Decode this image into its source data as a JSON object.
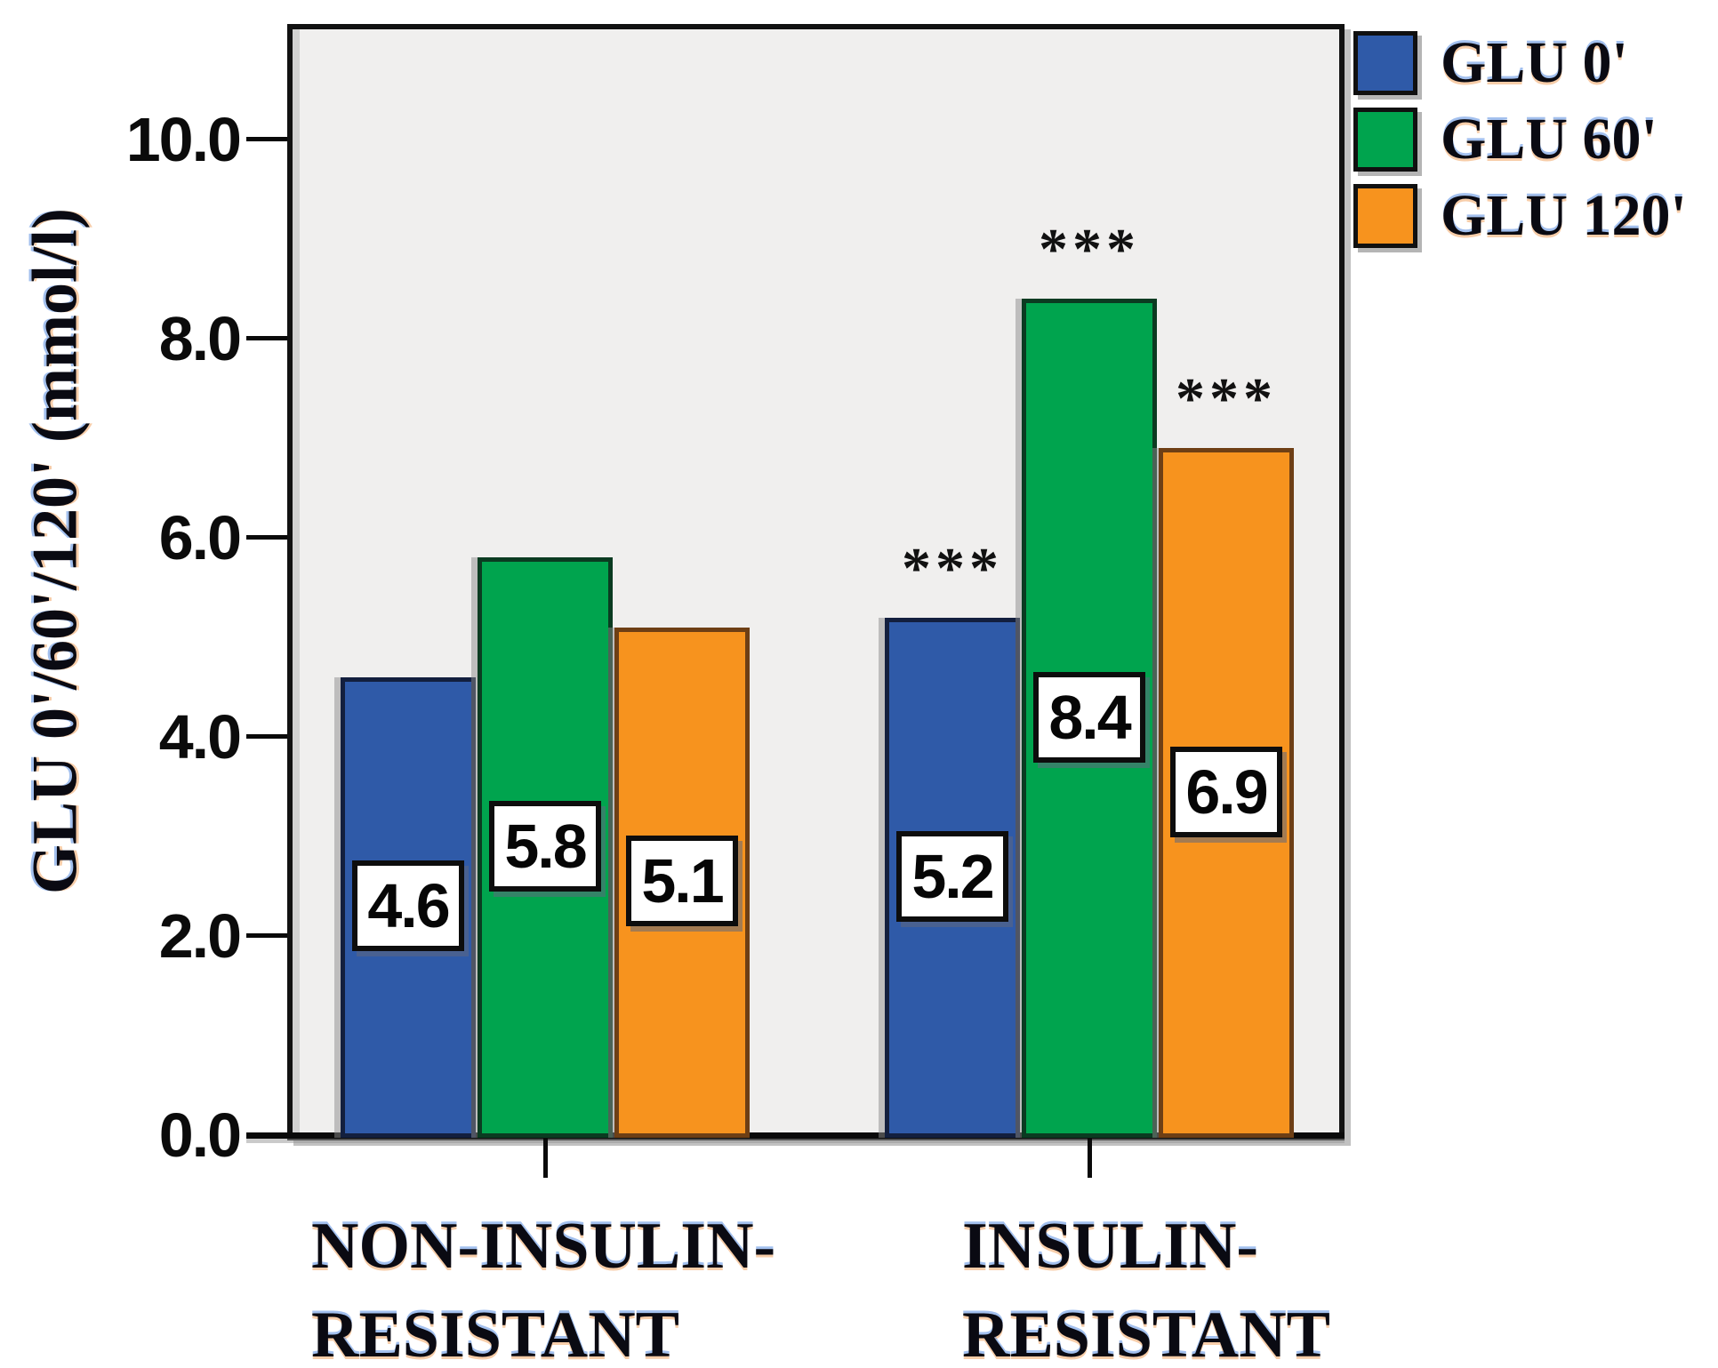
{
  "chart_data": {
    "type": "bar",
    "title": "",
    "xlabel": "",
    "ylabel": "GLU 0'/60'/120'  (mmol/l)",
    "ylim": [
      0,
      11.16
    ],
    "yticks": [
      0,
      2,
      4,
      6,
      8,
      10
    ],
    "ytick_decimals": 1,
    "grid": false,
    "panel_background": "#f0efee",
    "legend_position": "top-right-outside",
    "categories": [
      {
        "lines": [
          "NON-INSULIN-",
          "RESISTANT"
        ]
      },
      {
        "lines": [
          "INSULIN-",
          "RESISTANT"
        ]
      }
    ],
    "series": [
      {
        "name": "GLU 0'",
        "color": "#2f5aa8",
        "border_color": "#131f3e",
        "values": [
          4.6,
          5.2
        ]
      },
      {
        "name": "GLU 60'",
        "color": "#00a44e",
        "border_color": "#0b3b21",
        "values": [
          5.8,
          8.4
        ]
      },
      {
        "name": "GLU 120'",
        "color": "#f7931e",
        "border_color": "#6e3f15",
        "values": [
          5.1,
          6.9
        ]
      }
    ],
    "value_labels_visible": true,
    "annotations": [
      {
        "category_index": 1,
        "series_index": 0,
        "text": "***"
      },
      {
        "category_index": 1,
        "series_index": 1,
        "text": "***"
      },
      {
        "category_index": 1,
        "series_index": 2,
        "text": "***"
      }
    ]
  }
}
